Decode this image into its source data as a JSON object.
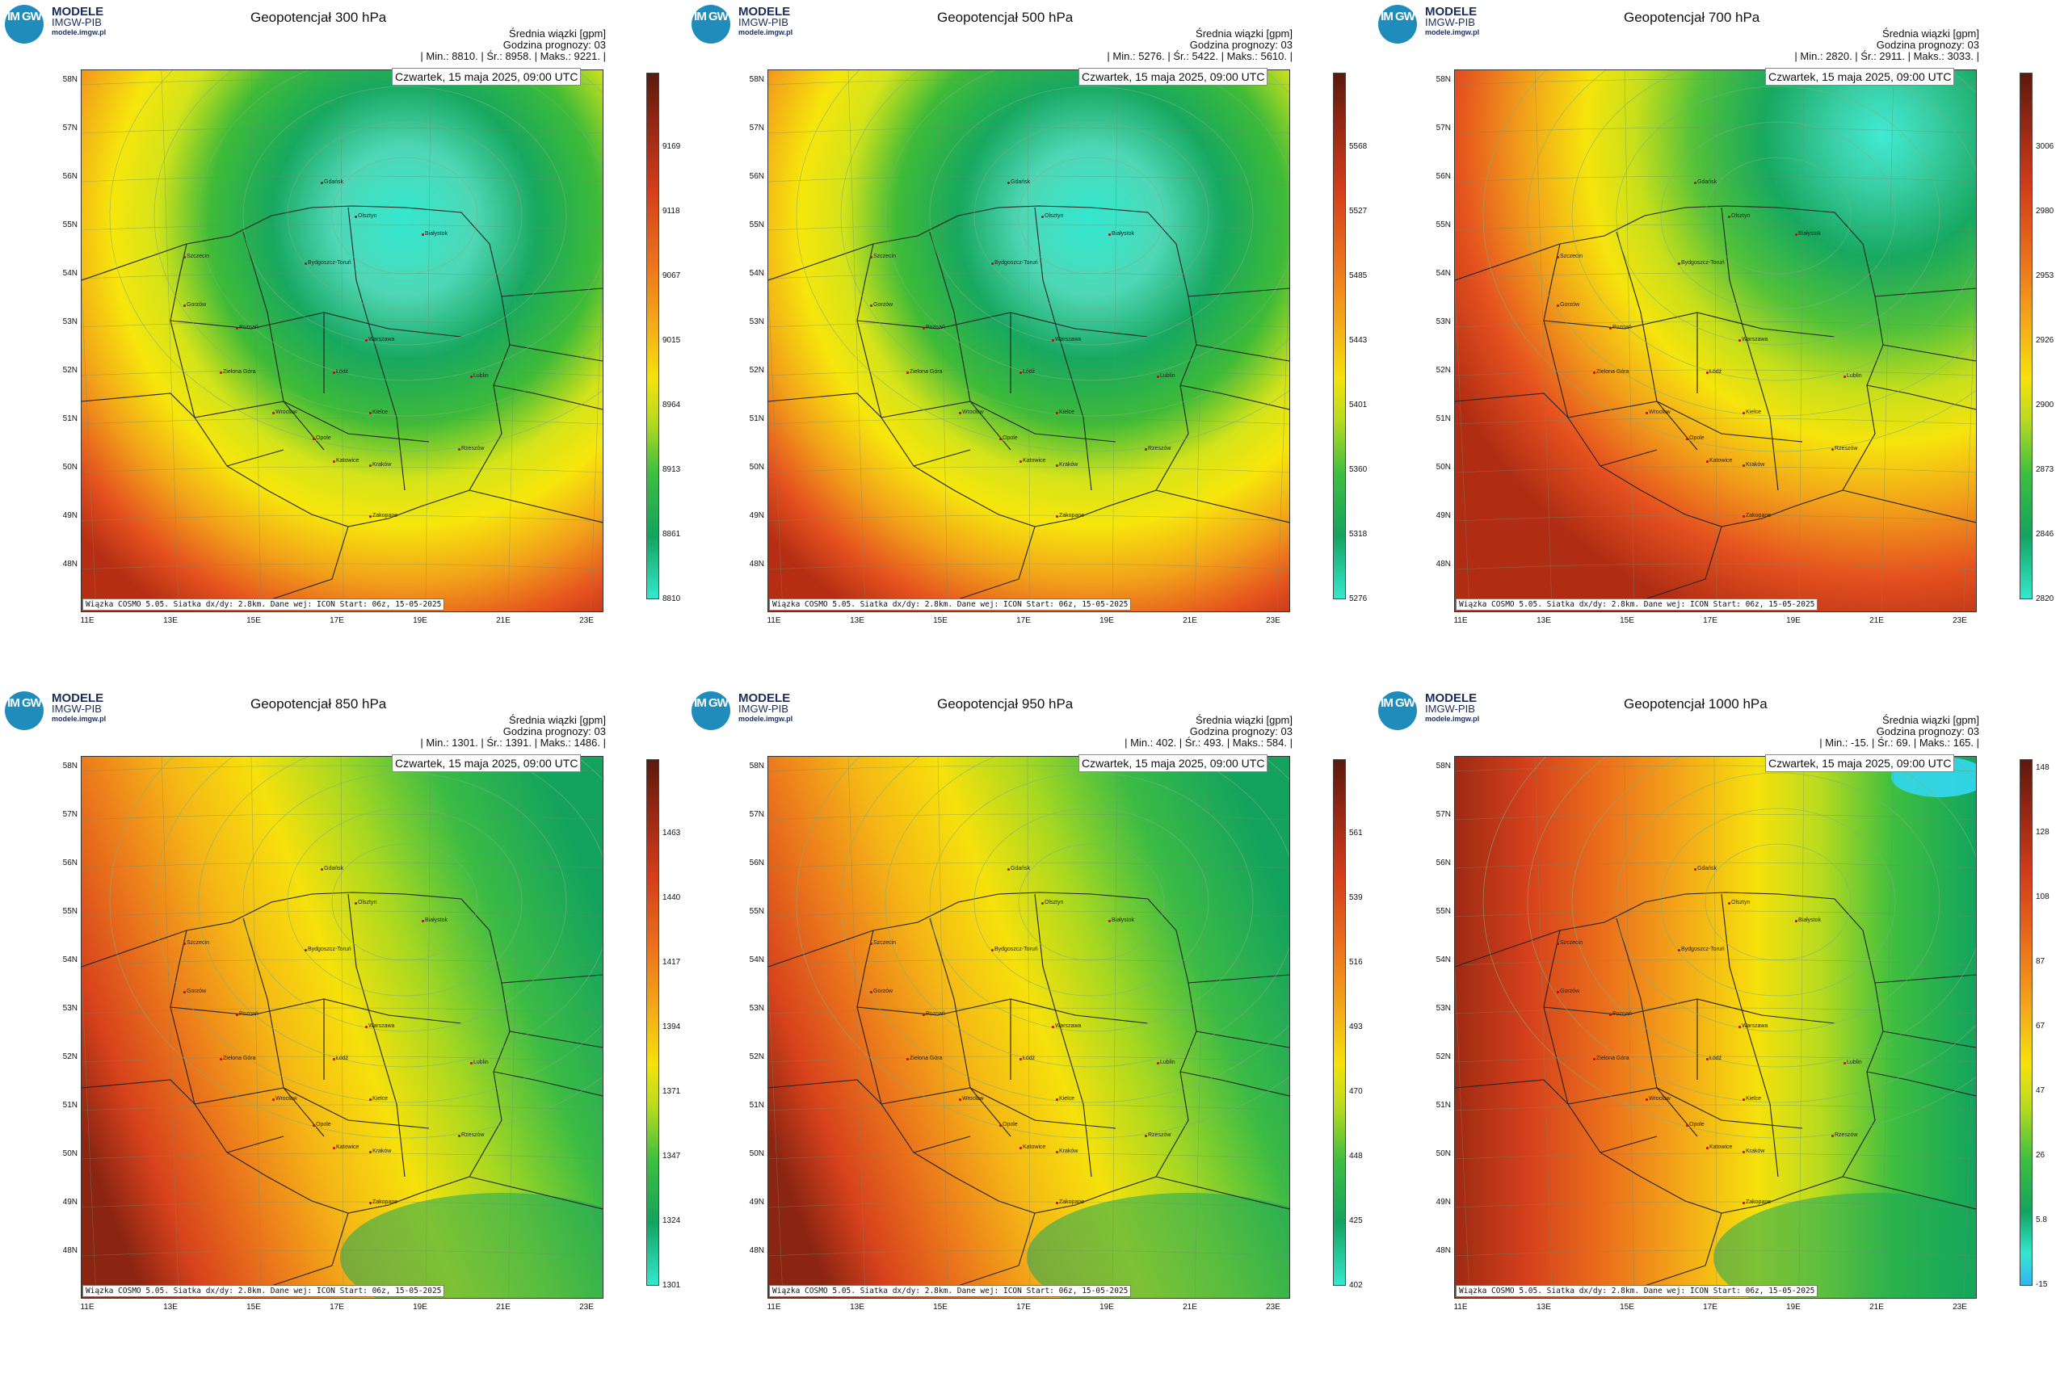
{
  "logo": {
    "badge": "IM GW",
    "line1": "MODELE",
    "line2": "IMGW-PIB",
    "line3": "modele.imgw.pl"
  },
  "common": {
    "avg_label": "Średnia wiązki [gpm]",
    "forecast_hour": "Godzina prognozy: 03",
    "date": "Czwartek, 15 maja 2025, 09:00 UTC",
    "credit": "Wiązka COSMO 5.05. Siatka dx/dy: 2.8km. Dane wej: ICON Start: 06z, 15-05-2025",
    "lat_labels": [
      "58N",
      "57N",
      "56N",
      "55N",
      "54N",
      "53N",
      "52N",
      "51N",
      "50N",
      "49N",
      "48N"
    ],
    "lon_labels": [
      "11E",
      "13E",
      "15E",
      "17E",
      "19E",
      "21E",
      "23E"
    ]
  },
  "cities": [
    "Gdańsk",
    "Olsztyn",
    "Białystok",
    "Szczecin",
    "Bydgoszcz-Toruń",
    "Gorzów",
    "Poznań",
    "Warszawa",
    "Zielona Góra",
    "Łódź",
    "Lublin",
    "Wrocław",
    "Kielce",
    "Opole",
    "Katowice",
    "Kraków",
    "Rzeszów",
    "Zakopane"
  ],
  "panels": [
    {
      "title": "Geopotencjał 300 hPa",
      "stats": "| Min.:   8810. | Śr.:   8958. | Maks.:   9221. |",
      "cbar_ticks": [
        "9169",
        "9118",
        "9067",
        "9015",
        "8964",
        "8913",
        "8861",
        "8810"
      ],
      "scheme": "low-ne-strong"
    },
    {
      "title": "Geopotencjał 500 hPa",
      "stats": "| Min.:   5276. | Śr.:   5422. | Maks.:   5610. |",
      "cbar_ticks": [
        "5568",
        "5527",
        "5485",
        "5443",
        "5401",
        "5360",
        "5318",
        "5276"
      ],
      "scheme": "low-ne-strong"
    },
    {
      "title": "Geopotencjał 700 hPa",
      "stats": "| Min.:   2820. | Śr.:   2911. | Maks.:   3033. |",
      "cbar_ticks": [
        "3006",
        "2980",
        "2953",
        "2926",
        "2900",
        "2873",
        "2846",
        "2820"
      ],
      "scheme": "low-ne"
    },
    {
      "title": "Geopotencjał 850 hPa",
      "stats": "| Min.:   1301. | Śr.:   1391. | Maks.:   1486. |",
      "cbar_ticks": [
        "1463",
        "1440",
        "1417",
        "1394",
        "1371",
        "1347",
        "1324",
        "1301"
      ],
      "scheme": "low-e"
    },
    {
      "title": "Geopotencjał 950 hPa",
      "stats": "| Min.:   402. | Śr.:   493. | Maks.:   584. |",
      "cbar_ticks": [
        "561",
        "539",
        "516",
        "493",
        "470",
        "448",
        "425",
        "402"
      ],
      "scheme": "low-e"
    },
    {
      "title": "Geopotencjał 1000 hPa",
      "stats": "| Min.:   -15. | Śr.:   69. | Maks.:   165. |",
      "cbar_ticks": [
        "148",
        "128",
        "108",
        "87",
        "67",
        "47",
        "26",
        "5.8",
        "-15"
      ],
      "scheme": "low-e-se"
    }
  ]
}
